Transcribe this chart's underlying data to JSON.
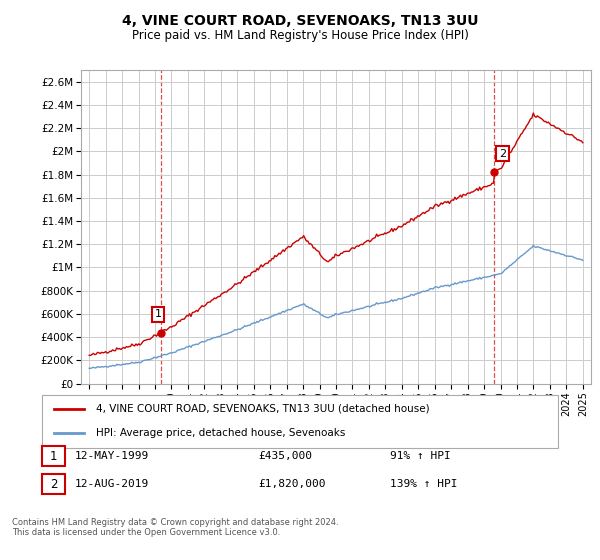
{
  "title": "4, VINE COURT ROAD, SEVENOAKS, TN13 3UU",
  "subtitle": "Price paid vs. HM Land Registry's House Price Index (HPI)",
  "hpi_label": "HPI: Average price, detached house, Sevenoaks",
  "property_label": "4, VINE COURT ROAD, SEVENOAKS, TN13 3UU (detached house)",
  "annotation1_date": "12-MAY-1999",
  "annotation1_price": "£435,000",
  "annotation1_hpi": "91% ↑ HPI",
  "annotation1_year": 1999.37,
  "annotation1_value": 435000,
  "annotation2_date": "12-AUG-2019",
  "annotation2_price": "£1,820,000",
  "annotation2_hpi": "139% ↑ HPI",
  "annotation2_year": 2019.62,
  "annotation2_value": 1820000,
  "ylim": [
    0,
    2700000
  ],
  "yticks": [
    0,
    200000,
    400000,
    600000,
    800000,
    1000000,
    1200000,
    1400000,
    1600000,
    1800000,
    2000000,
    2200000,
    2400000,
    2600000
  ],
  "ytick_labels": [
    "£0",
    "£200K",
    "£400K",
    "£600K",
    "£800K",
    "£1M",
    "£1.2M",
    "£1.4M",
    "£1.6M",
    "£1.8M",
    "£2M",
    "£2.2M",
    "£2.4M",
    "£2.6M"
  ],
  "property_color": "#cc0000",
  "hpi_color": "#6699cc",
  "background_color": "#ffffff",
  "grid_color": "#cccccc",
  "footnote": "Contains HM Land Registry data © Crown copyright and database right 2024.\nThis data is licensed under the Open Government Licence v3.0."
}
